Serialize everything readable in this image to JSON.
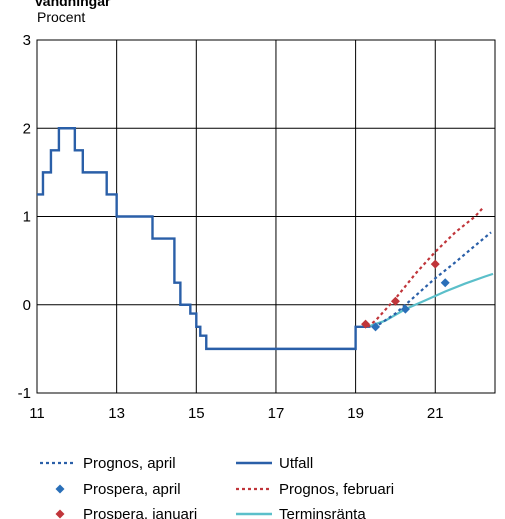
{
  "chart_data": {
    "type": "line",
    "title": "vändningar",
    "ylabel": "Procent",
    "xlabel": "",
    "xlim": [
      11,
      22.5
    ],
    "ylim": [
      -1,
      3
    ],
    "x_ticks": [
      11,
      13,
      15,
      17,
      19,
      21
    ],
    "y_ticks": [
      -1,
      0,
      1,
      2,
      3
    ],
    "grid": true,
    "legend_position": "bottom",
    "colors": {
      "utfall": "#2a5fa8",
      "prognos_april": "#2a5fa8",
      "prognos_februari": "#c0353a",
      "prospera_april": "#2a6fb8",
      "prospera_januari": "#c0353a",
      "terminsranta": "#5bbfca"
    },
    "series": [
      {
        "name": "Utfall",
        "kind": "step",
        "x": [
          11.0,
          11.15,
          11.35,
          11.55,
          11.95,
          12.15,
          12.75,
          13.0,
          13.9,
          14.45,
          14.6,
          14.85,
          15.0,
          15.1,
          15.25,
          15.45,
          16.1,
          19.0,
          19.3
        ],
        "values": [
          1.25,
          1.5,
          1.75,
          2.0,
          1.75,
          1.5,
          1.25,
          1.0,
          0.75,
          0.25,
          0.0,
          -0.1,
          -0.25,
          -0.35,
          -0.5,
          -0.5,
          -0.5,
          -0.25,
          -0.25
        ]
      },
      {
        "name": "Prognos, april",
        "kind": "dotted-line",
        "x": [
          19.3,
          19.5,
          20.0,
          20.5,
          21.0,
          21.5,
          22.0,
          22.4
        ],
        "values": [
          -0.25,
          -0.25,
          -0.1,
          0.1,
          0.3,
          0.48,
          0.67,
          0.82
        ]
      },
      {
        "name": "Prognos, februari",
        "kind": "dotted-line",
        "x": [
          19.3,
          19.5,
          20.0,
          20.5,
          21.0,
          21.5,
          22.0,
          22.2
        ],
        "values": [
          -0.25,
          -0.18,
          0.07,
          0.35,
          0.6,
          0.82,
          1.0,
          1.1
        ]
      },
      {
        "name": "Terminsränta",
        "kind": "line",
        "x": [
          19.3,
          19.75,
          20.25,
          20.75,
          21.25,
          21.75,
          22.25,
          22.45
        ],
        "values": [
          -0.25,
          -0.18,
          -0.05,
          0.05,
          0.15,
          0.24,
          0.32,
          0.35
        ]
      },
      {
        "name": "Prospera, april",
        "kind": "markers",
        "x": [
          19.5,
          20.25,
          21.25
        ],
        "values": [
          -0.25,
          -0.05,
          0.25
        ]
      },
      {
        "name": "Prospera, januari",
        "kind": "markers",
        "x": [
          19.25,
          20.0,
          21.0
        ],
        "values": [
          -0.22,
          0.04,
          0.46
        ]
      }
    ],
    "legend": [
      {
        "label": "Prognos, april",
        "symbol": "dotted",
        "color": "#2a5fa8"
      },
      {
        "label": "Utfall",
        "symbol": "line",
        "color": "#2a5fa8"
      },
      {
        "label": "Prospera, april",
        "symbol": "diamond",
        "color": "#2a6fb8"
      },
      {
        "label": "Prognos, februari",
        "symbol": "dotted",
        "color": "#c0353a"
      },
      {
        "label": "Prospera, januari",
        "symbol": "diamond",
        "color": "#c0353a"
      },
      {
        "label": "Terminsränta",
        "symbol": "line",
        "color": "#5bbfca"
      }
    ]
  }
}
